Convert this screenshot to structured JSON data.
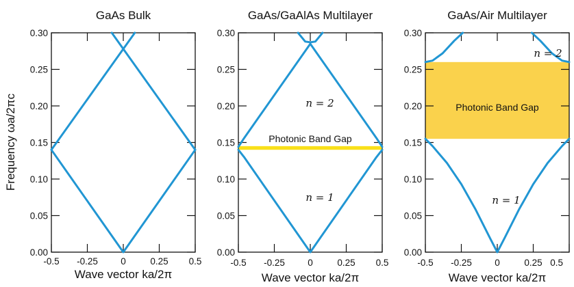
{
  "chart_data": [
    {
      "type": "line",
      "title": "GaAs Bulk",
      "xlabel": "Wave vector  ka/2π",
      "ylabel": "Frequency  ωa/2πc",
      "xlim": [
        -0.5,
        0.5
      ],
      "ylim": [
        0,
        0.3
      ],
      "xticks": [
        "-0.5",
        "-0.25",
        "0",
        "0.25",
        "0.5"
      ],
      "yticks": [
        "0.00",
        "0.05",
        "0.10",
        "0.15",
        "0.20",
        "0.25",
        "0.30"
      ],
      "band_color": "#2196d3",
      "series": [
        {
          "x": [
            -0.5,
            0,
            0.5
          ],
          "y": [
            0.14,
            0,
            0.14
          ]
        },
        {
          "x": [
            -0.5,
            0.08
          ],
          "y": [
            0.14,
            0.3
          ]
        },
        {
          "x": [
            -0.08,
            0.5
          ],
          "y": [
            0.3,
            0.14
          ]
        }
      ],
      "gap": null,
      "labels": []
    },
    {
      "type": "line",
      "title": "GaAs/GaAlAs Multilayer",
      "xlabel": "Wave vector  ka/2π",
      "ylabel": "",
      "xlim": [
        -0.5,
        0.5
      ],
      "ylim": [
        0,
        0.3
      ],
      "xticks": [
        "-0.5",
        "-0.25",
        "0",
        "0.25",
        "0.5"
      ],
      "yticks": [
        "0.00",
        "0.05",
        "0.10",
        "0.15",
        "0.20",
        "0.25",
        "0.30"
      ],
      "band_color": "#2196d3",
      "gap_color": "#f9e01a",
      "series": [
        {
          "x": [
            -0.5,
            -0.46,
            0,
            0.46,
            0.5
          ],
          "y": [
            0.14,
            0.13,
            0,
            0.13,
            0.14
          ]
        },
        {
          "x": [
            -0.5,
            -0.46,
            0,
            0.46,
            0.5
          ],
          "y": [
            0.144,
            0.156,
            0.285,
            0.156,
            0.144
          ]
        },
        {
          "x": [
            -0.085,
            -0.035,
            0,
            0.035,
            0.085
          ],
          "y": [
            0.3,
            0.288,
            0.287,
            0.288,
            0.3
          ]
        }
      ],
      "gap": {
        "from": 0.14,
        "to": 0.145
      },
      "labels": [
        "Photonic Band Gap",
        "n = 2",
        "n = 1"
      ]
    },
    {
      "type": "line",
      "title": "GaAs/Air Multilayer",
      "xlabel": "Wave vector  ka/2π",
      "ylabel": "",
      "xlim": [
        -0.5,
        0.5
      ],
      "ylim": [
        0,
        0.3
      ],
      "xticks": [
        "-0.5",
        "-0.25",
        "0",
        "0.25",
        "0.5"
      ],
      "yticks": [
        "0.00",
        "0.05",
        "0.10",
        "0.15",
        "0.20",
        "0.25",
        "0.30"
      ],
      "band_color": "#2196d3",
      "gap_color": "#fad24c",
      "series": [
        {
          "x": [
            -0.5,
            -0.45,
            -0.35,
            -0.25,
            -0.15,
            -0.05,
            0,
            0.05,
            0.15,
            0.25,
            0.35,
            0.45,
            0.5
          ],
          "y": [
            0.155,
            0.145,
            0.122,
            0.093,
            0.058,
            0.019,
            0,
            0.019,
            0.058,
            0.093,
            0.122,
            0.145,
            0.155
          ]
        },
        {
          "x": [
            -0.5,
            -0.45,
            -0.38,
            -0.3,
            -0.24
          ],
          "y": [
            0.26,
            0.262,
            0.272,
            0.289,
            0.3
          ]
        },
        {
          "x": [
            0.24,
            0.3,
            0.38,
            0.45,
            0.5
          ],
          "y": [
            0.3,
            0.289,
            0.272,
            0.262,
            0.26
          ]
        }
      ],
      "gap": {
        "from": 0.155,
        "to": 0.26
      },
      "labels": [
        "Photonic Band Gap",
        "n = 2",
        "n = 1"
      ]
    }
  ]
}
